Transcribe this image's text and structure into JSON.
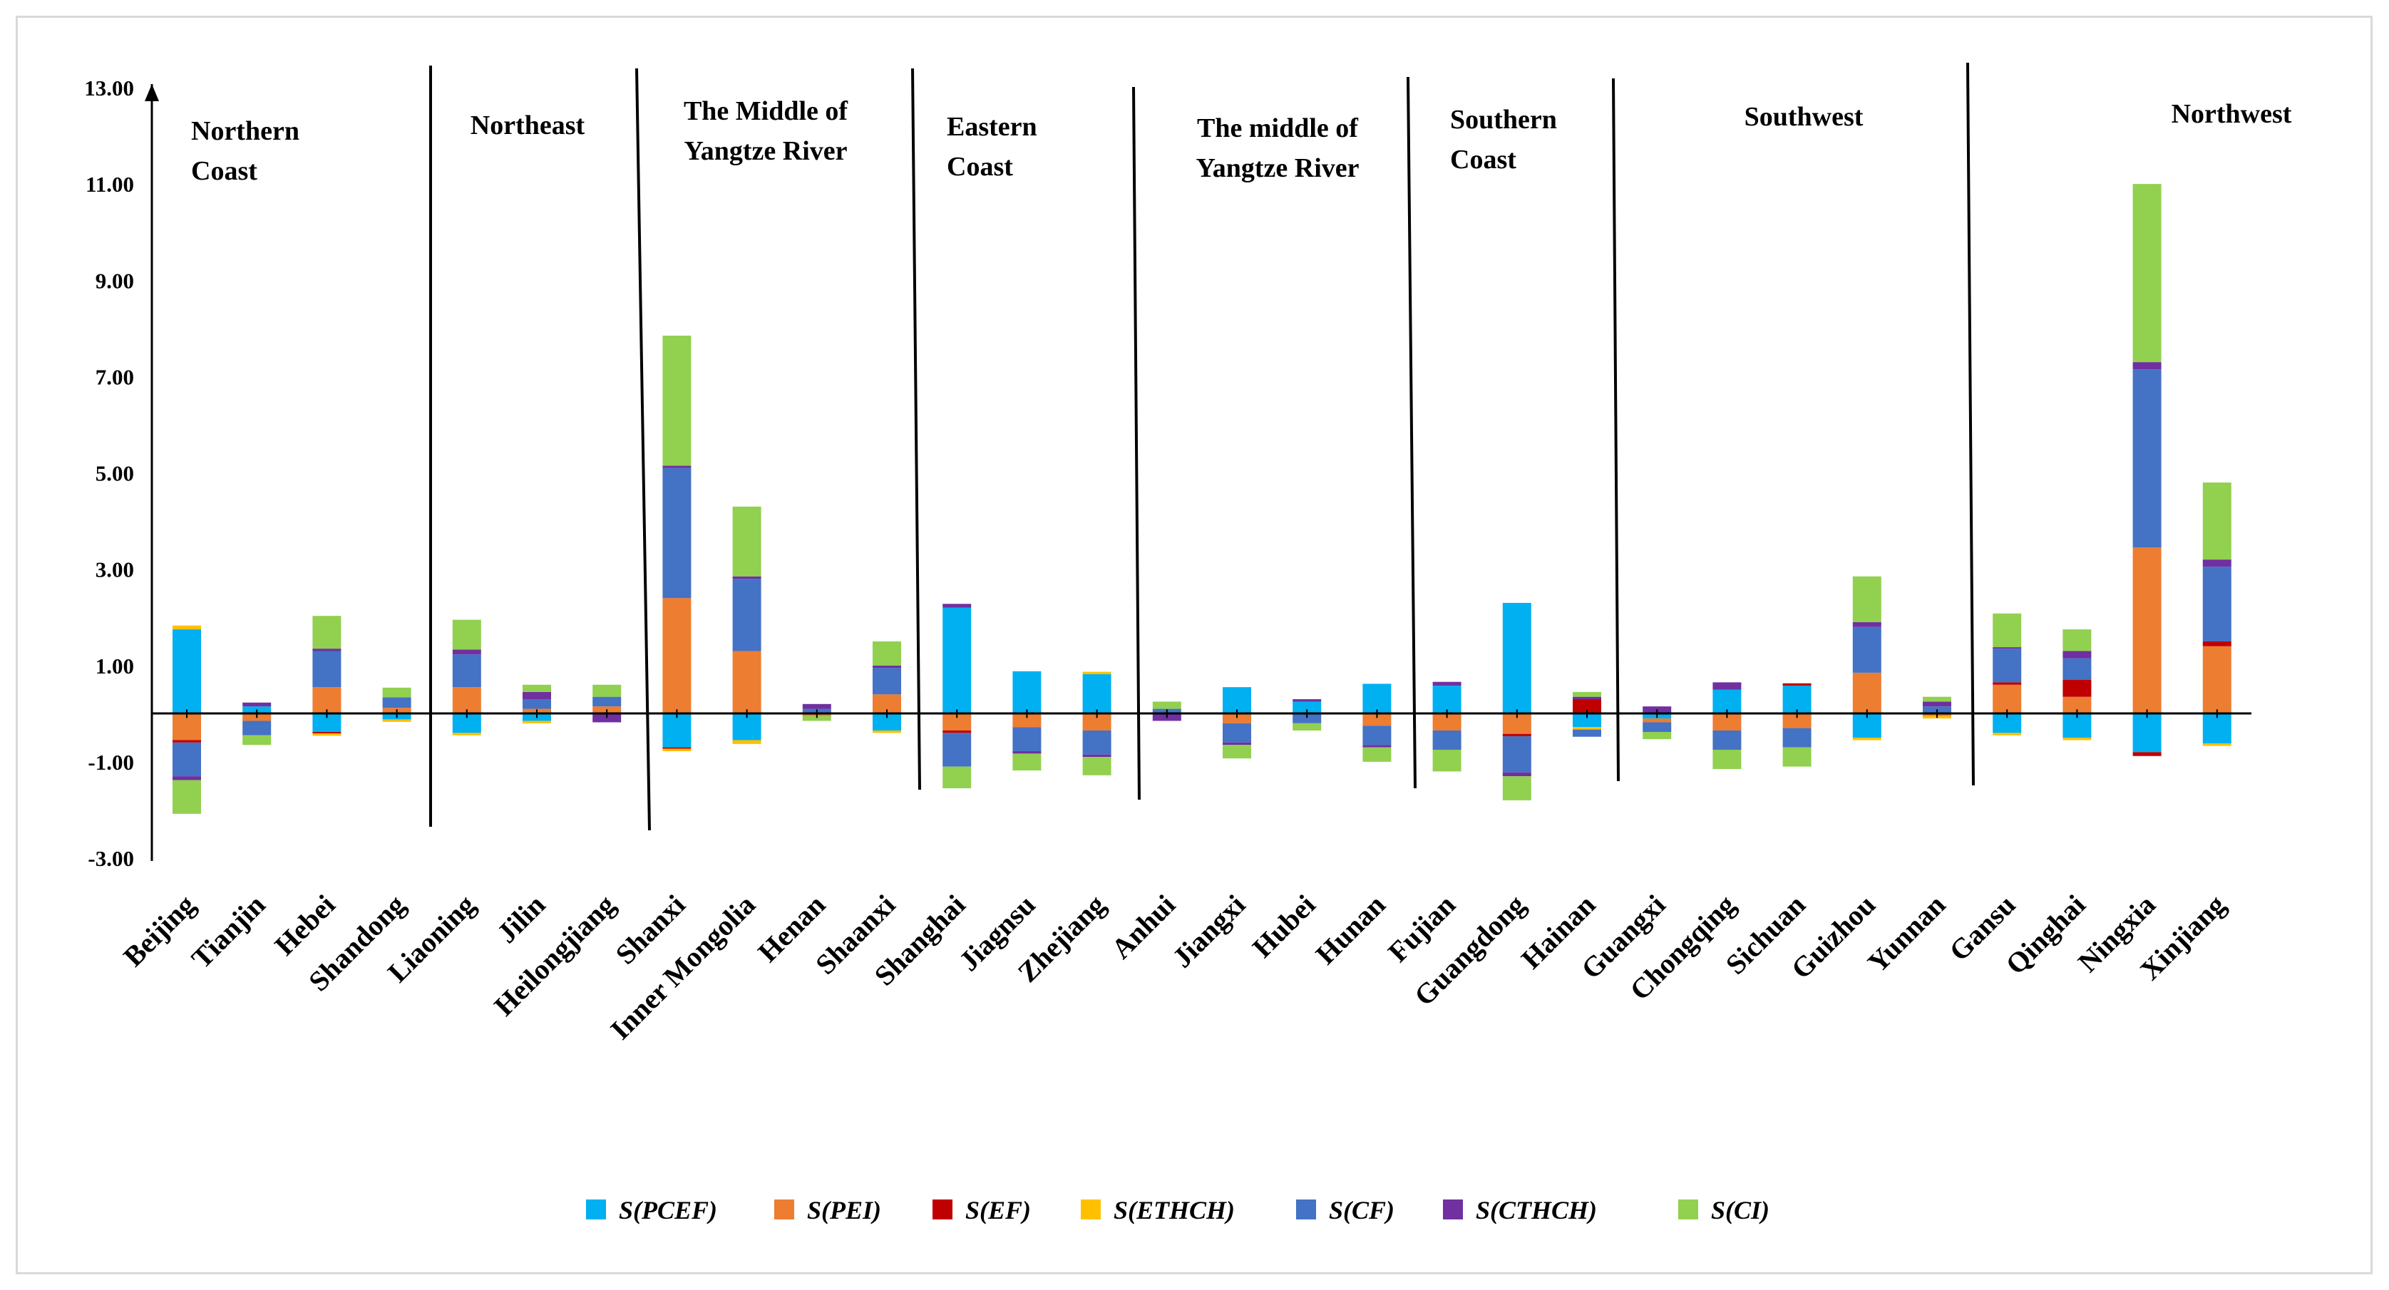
{
  "chart_data": {
    "type": "bar",
    "stacked": true,
    "title": "",
    "xlabel": "",
    "ylabel": "",
    "ylim": [
      -3,
      13
    ],
    "yticks": [
      "13.00",
      "11.00",
      "9.00",
      "7.00",
      "5.00",
      "3.00",
      "1.00",
      "-1.00",
      "-3.00"
    ],
    "ytick_values": [
      13,
      11,
      9,
      7,
      5,
      3,
      1,
      -1,
      -3
    ],
    "grid": false,
    "legend_position": "bottom",
    "categories": [
      "Beijing",
      "Tianjin",
      "Hebei",
      "Shandong",
      "Liaoning",
      "Jilin",
      "Heilongjiang",
      "Shanxi",
      "Inner Mongolia",
      "Henan",
      "Shaanxi",
      "Shanghai",
      "Jiagnsu",
      "Zhejiang",
      "Anhui",
      "Jiangxi",
      "Hubei",
      "Hunan",
      "Fujian",
      "Guangdong",
      "Hainan",
      "Guangxi",
      "Chongqing",
      "Sichuan",
      "Guizhou",
      "Yunnan",
      "Gansu",
      "Qinghai",
      "Ningxia",
      "Xinjiang"
    ],
    "series": [
      {
        "name": "S(PCEF)",
        "color": "#00b0f0",
        "values": [
          1.75,
          0.15,
          -0.38,
          -0.12,
          -0.4,
          -0.15,
          0.0,
          -0.7,
          -0.55,
          0.0,
          -0.35,
          2.2,
          0.88,
          0.82,
          0.0,
          0.55,
          0.25,
          0.62,
          0.58,
          2.3,
          -0.28,
          -0.1,
          0.5,
          0.58,
          -0.5,
          0.0,
          -0.4,
          -0.5,
          -0.8,
          -0.62
        ]
      },
      {
        "name": "S(PEI)",
        "color": "#ed7d31",
        "values": [
          -0.55,
          -0.15,
          0.55,
          0.12,
          0.55,
          0.1,
          0.15,
          2.4,
          1.3,
          -0.05,
          0.4,
          -0.35,
          -0.28,
          -0.35,
          0.0,
          -0.2,
          0.0,
          -0.25,
          -0.35,
          -0.42,
          0.0,
          -0.08,
          -0.35,
          -0.3,
          0.85,
          -0.05,
          0.6,
          0.35,
          3.45,
          1.4
        ]
      },
      {
        "name": "S(EF)",
        "color": "#c00000",
        "values": [
          -0.05,
          0.0,
          -0.03,
          0.0,
          0.0,
          0.0,
          0.0,
          -0.03,
          0.0,
          0.0,
          0.0,
          -0.05,
          0.0,
          0.0,
          0.0,
          0.0,
          0.0,
          0.0,
          0.0,
          -0.05,
          0.3,
          0.0,
          0.0,
          0.05,
          0.0,
          0.0,
          0.05,
          0.35,
          -0.08,
          0.1
        ]
      },
      {
        "name": "S(ETHCH)",
        "color": "#ffc000",
        "values": [
          0.08,
          0.0,
          -0.05,
          -0.05,
          -0.05,
          -0.05,
          0.0,
          -0.05,
          -0.08,
          0.0,
          -0.05,
          0.0,
          0.0,
          0.05,
          0.0,
          0.0,
          0.0,
          0.0,
          0.0,
          0.0,
          -0.05,
          0.0,
          0.0,
          0.0,
          -0.05,
          -0.05,
          -0.05,
          -0.05,
          0.0,
          -0.05
        ]
      },
      {
        "name": "S(CF)",
        "color": "#4472c4",
        "values": [
          -0.7,
          -0.3,
          0.75,
          0.22,
          0.68,
          0.2,
          0.2,
          2.7,
          1.5,
          0.1,
          0.55,
          -0.7,
          -0.5,
          -0.5,
          0.1,
          -0.4,
          -0.2,
          -0.4,
          -0.4,
          -0.75,
          -0.15,
          -0.2,
          -0.4,
          -0.4,
          0.95,
          0.15,
          0.7,
          0.45,
          3.7,
          1.55
        ]
      },
      {
        "name": "S(CTHCH)",
        "color": "#7030a0",
        "values": [
          -0.08,
          0.08,
          0.05,
          0.0,
          0.1,
          0.15,
          -0.18,
          0.05,
          0.05,
          0.1,
          0.05,
          0.08,
          -0.05,
          -0.05,
          -0.15,
          -0.05,
          0.05,
          -0.05,
          0.08,
          -0.08,
          0.05,
          0.15,
          0.15,
          0.0,
          0.1,
          0.1,
          0.03,
          0.15,
          0.15,
          0.15
        ]
      },
      {
        "name": "S(CI)",
        "color": "#92d050",
        "values": [
          -0.7,
          -0.2,
          0.68,
          0.2,
          0.62,
          0.15,
          0.25,
          2.7,
          1.45,
          -0.1,
          0.5,
          -0.45,
          -0.35,
          -0.38,
          0.15,
          -0.28,
          -0.15,
          -0.3,
          -0.45,
          -0.5,
          0.1,
          -0.15,
          -0.4,
          -0.4,
          0.95,
          0.1,
          0.7,
          0.45,
          3.7,
          1.6
        ]
      }
    ],
    "regions": [
      {
        "lines": [
          "Northern",
          "Coast"
        ]
      },
      {
        "lines": [
          "Northeast"
        ]
      },
      {
        "lines": [
          "The Middle of",
          "Yangtze River"
        ]
      },
      {
        "lines": [
          "Eastern",
          "Coast"
        ]
      },
      {
        "lines": [
          "The middle of",
          "Yangtze River"
        ]
      },
      {
        "lines": [
          "Southern",
          "Coast"
        ]
      },
      {
        "lines": [
          "Southwest"
        ]
      },
      {
        "lines": [
          "Northwest"
        ]
      }
    ]
  }
}
